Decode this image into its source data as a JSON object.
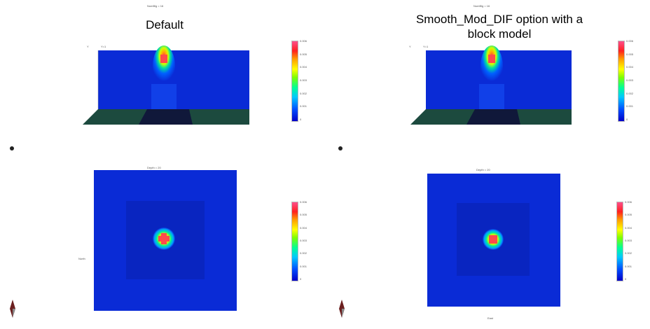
{
  "left": {
    "title": "Default",
    "header_small": "NumBlg = 16",
    "top_plot_small": "Y=1",
    "top_plot_axis": "Y",
    "bottom_plot_small": "Depth = 20",
    "bottom_axis_y": "North",
    "colorbar_ticks": [
      "0.006",
      "0.005",
      "0.004",
      "0.003",
      "0.002",
      "0.001",
      "0"
    ]
  },
  "right": {
    "title": "Smooth_Mod_DIF option with a block model",
    "header_small": "NumBlg = 16",
    "top_plot_small": "Y=1",
    "top_plot_axis": "Y",
    "bottom_plot_small": "Depth = 20",
    "bottom_axis_x": "East",
    "colorbar_ticks": [
      "0.006",
      "0.005",
      "0.004",
      "0.003",
      "0.002",
      "0.001",
      "0"
    ]
  },
  "colors": {
    "background": "#0a2bd6",
    "anomaly_core": "#ff4a4a",
    "ground": "#1c4a3e"
  }
}
